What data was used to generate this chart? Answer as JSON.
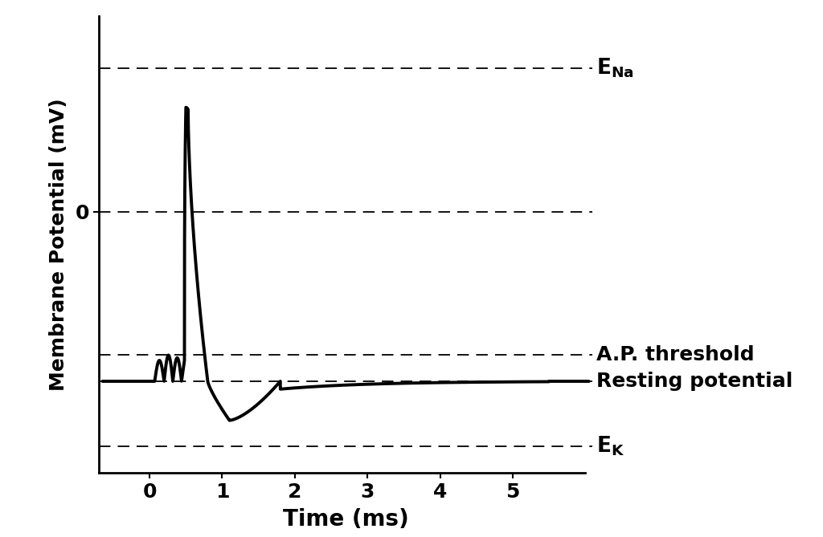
{
  "xlabel": "Time (ms)",
  "ylabel": "Membrane Potential (mV)",
  "background_color": "#ffffff",
  "line_color": "#000000",
  "line_width": 2.8,
  "xlim": [
    -0.7,
    6.1
  ],
  "x_ticks": [
    0,
    1,
    2,
    3,
    4,
    5
  ],
  "xlabel_fontsize": 20,
  "ylabel_fontsize": 18,
  "tick_fontsize": 18,
  "annotation_fontsize": 18,
  "AP_threshold_label": "A.P. threshold",
  "resting_potential_label": "Resting potential",
  "y_E_Na": 55,
  "y_0mV": 0,
  "y_threshold": -55,
  "y_resting": -65,
  "y_E_K": -90,
  "ylim": [
    -100,
    75
  ],
  "dashed_line_style": {
    "color": "black",
    "linestyle": "--",
    "linewidth": 1.3,
    "dashes": [
      8,
      5
    ]
  }
}
